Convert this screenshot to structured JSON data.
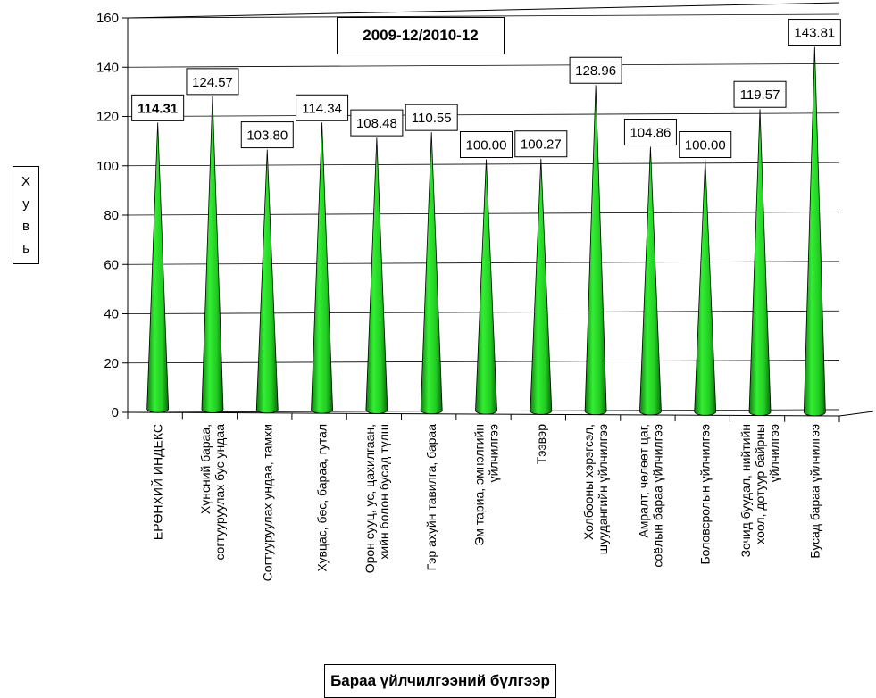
{
  "chart_data": {
    "type": "bar",
    "title": "2009-12/2010-12",
    "xlabel": "Бараа үйлчилгээний бүлгээр",
    "ylabel": "Хувь",
    "ylim": [
      0,
      160
    ],
    "yticks": [
      0,
      20,
      40,
      60,
      80,
      100,
      120,
      140,
      160
    ],
    "grid": true,
    "legend": "none",
    "bar_color": "#33ee33",
    "categories": [
      [
        "ЕРӨНХИЙ ИНДЕКС"
      ],
      [
        "Хүнсний бараа,",
        "согтууруулах бус ундаа"
      ],
      [
        "Согтууруулах ундаа, тамхи"
      ],
      [
        "Хувцас,  бөс,  бараа,  гутал"
      ],
      [
        "Орон сууц,  ус,  цахилгаан,",
        "хийн болон бусад түлш"
      ],
      [
        "Гэр ахуйн тавилга,   бараа"
      ],
      [
        "Эм тариа, эмнэлгийн",
        "үйлчилгээ"
      ],
      [
        "Тээвэр"
      ],
      [
        "Холбооны хэрэгсэл,",
        "шуудангийн үйлчилгээ"
      ],
      [
        "Амралт,  чөлөөт   цаг,",
        "соёлын бараа үйлчилгээ"
      ],
      [
        "Боловсролын үйлчилгээ"
      ],
      [
        "Зочид буудал,  нийтийн",
        "хоол,  дотуур байрны",
        "үйлчилгээ"
      ],
      [
        "Бусад бараа үйлчилгээ"
      ]
    ],
    "values": [
      114.31,
      124.57,
      103.8,
      114.34,
      108.48,
      110.55,
      100.0,
      100.27,
      128.96,
      104.86,
      100.0,
      119.57,
      143.81
    ],
    "data_labels": [
      "114.31",
      "124.57",
      "103.80",
      "114.34",
      "108.48",
      "110.55",
      "100.00",
      "100.27",
      "128.96",
      "104.86",
      "100.00",
      "119.57",
      "143.81"
    ]
  }
}
